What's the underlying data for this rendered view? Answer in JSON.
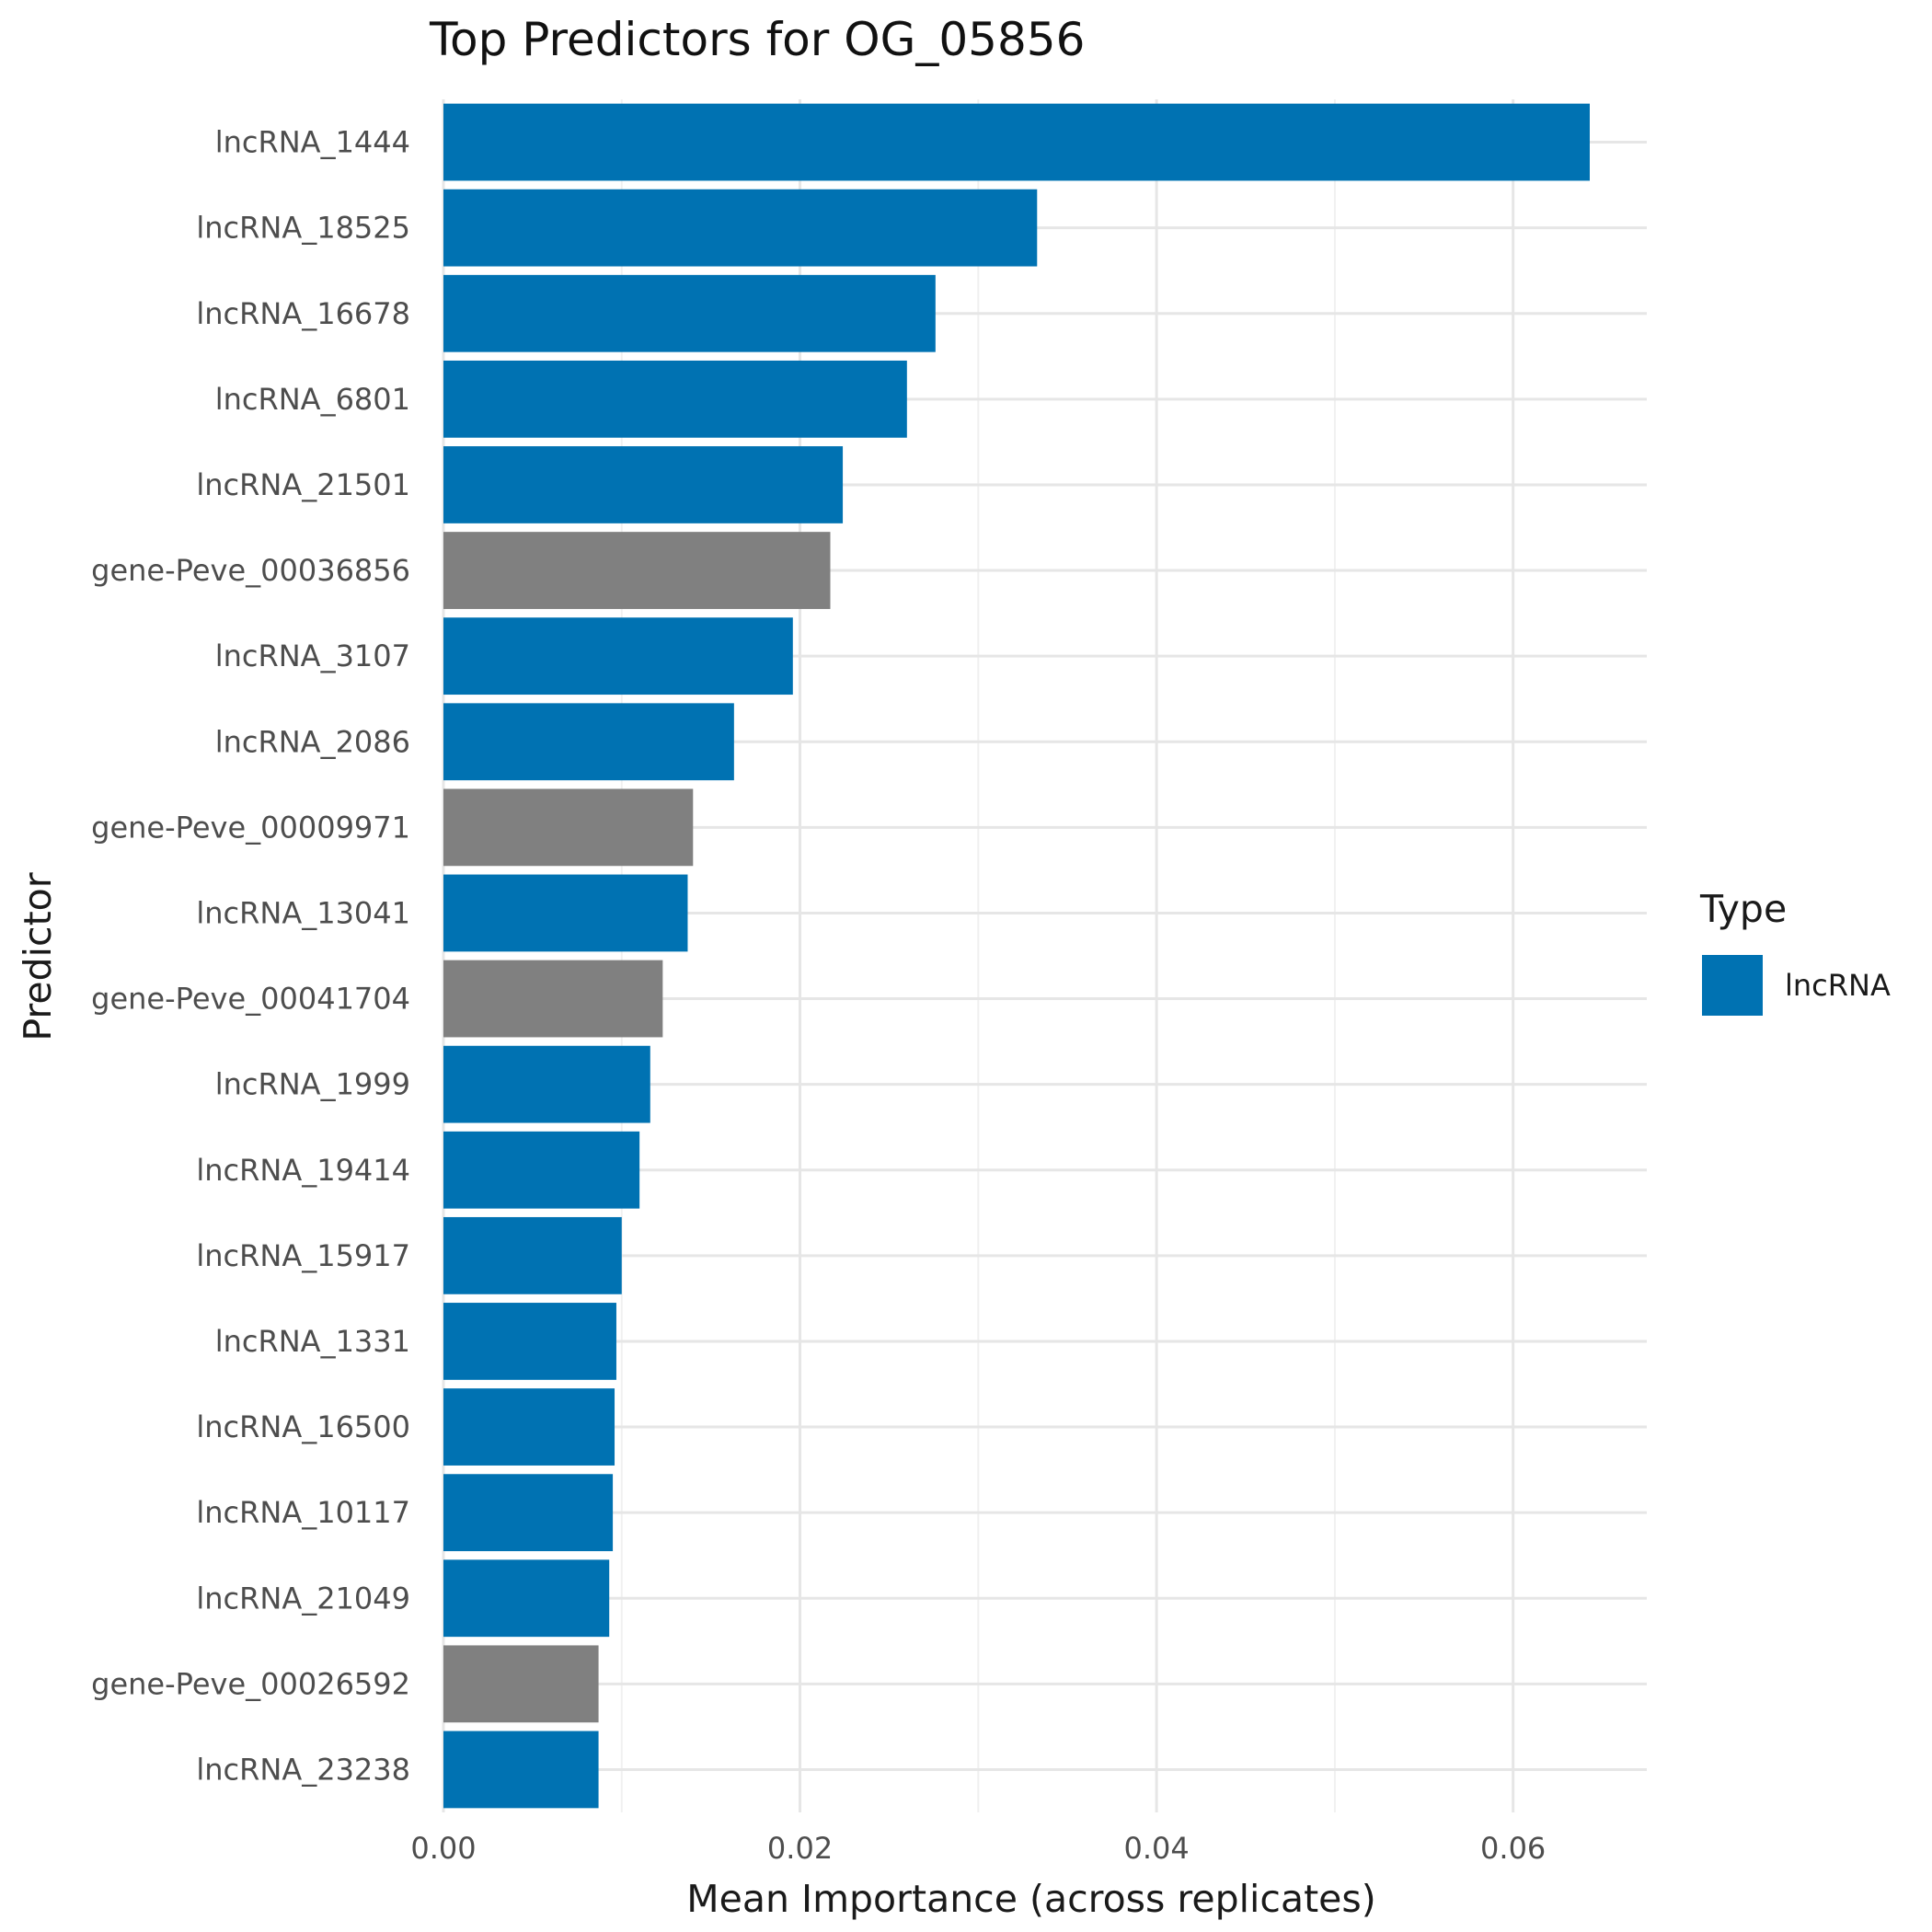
{
  "chart_data": {
    "type": "bar",
    "orientation": "horizontal",
    "title": "Top Predictors for OG_05856",
    "xlabel": "Mean Importance (across replicates)",
    "ylabel": "Predictor",
    "xlim": [
      0,
      0.0675
    ],
    "xticks": [
      0,
      0.02,
      0.04,
      0.06
    ],
    "xtick_labels": [
      "0.00",
      "0.02",
      "0.04",
      "0.06"
    ],
    "grid": true,
    "legend": {
      "title": "Type",
      "position": "right",
      "entries": [
        {
          "label": "lncRNA",
          "color": "#0072b2"
        }
      ]
    },
    "colors": {
      "lncRNA": "#0072b2",
      "gene": "#808080"
    },
    "categories": [
      "lncRNA_1444",
      "lncRNA_18525",
      "lncRNA_16678",
      "lncRNA_6801",
      "lncRNA_21501",
      "gene-Peve_00036856",
      "lncRNA_3107",
      "lncRNA_2086",
      "gene-Peve_00009971",
      "lncRNA_13041",
      "gene-Peve_00041704",
      "lncRNA_1999",
      "lncRNA_19414",
      "lncRNA_15917",
      "lncRNA_1331",
      "lncRNA_16500",
      "lncRNA_10117",
      "lncRNA_21049",
      "gene-Peve_00026592",
      "lncRNA_23238"
    ],
    "values": [
      0.0643,
      0.0333,
      0.0276,
      0.026,
      0.0224,
      0.0217,
      0.0196,
      0.0163,
      0.014,
      0.0137,
      0.0123,
      0.0116,
      0.011,
      0.01,
      0.0097,
      0.0096,
      0.0095,
      0.0093,
      0.0087,
      0.0087
    ],
    "types": [
      "lncRNA",
      "lncRNA",
      "lncRNA",
      "lncRNA",
      "lncRNA",
      "gene",
      "lncRNA",
      "lncRNA",
      "gene",
      "lncRNA",
      "gene",
      "lncRNA",
      "lncRNA",
      "lncRNA",
      "lncRNA",
      "lncRNA",
      "lncRNA",
      "lncRNA",
      "gene",
      "lncRNA"
    ]
  }
}
